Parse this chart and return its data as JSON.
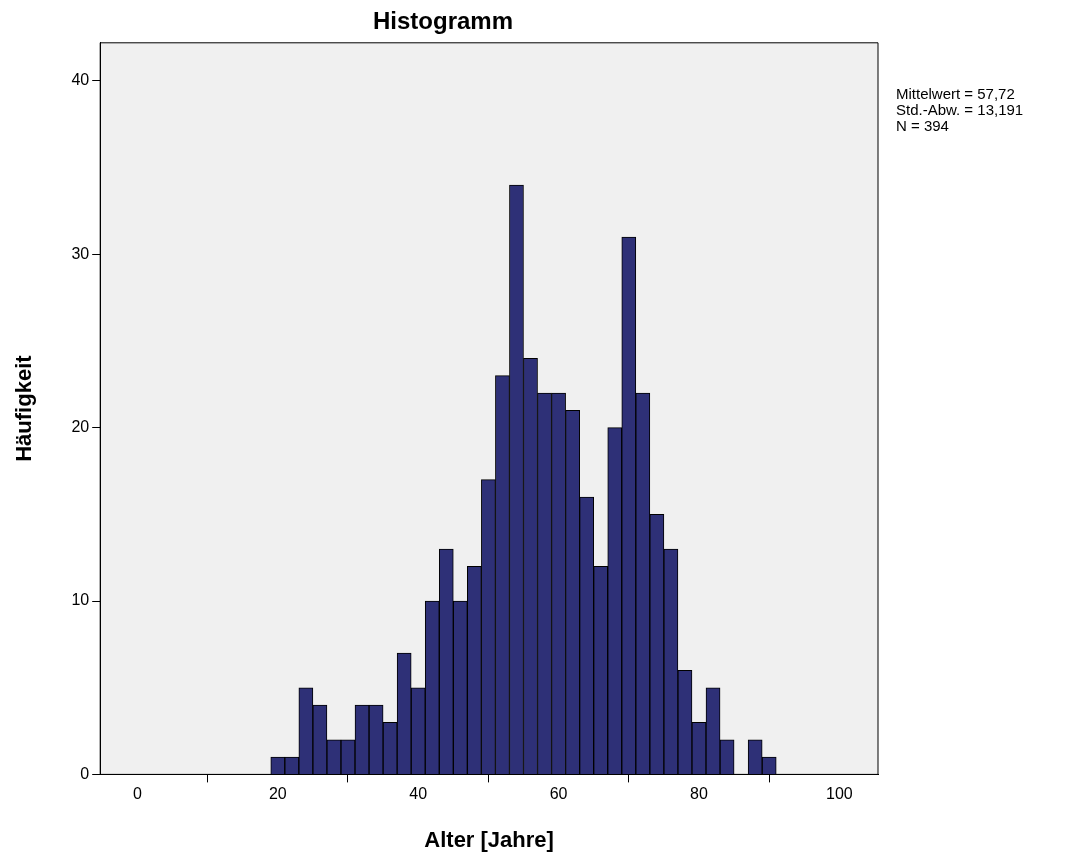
{
  "chart_data": {
    "type": "histogram",
    "title": "Histogramm",
    "xlabel": "Alter [Jahre]",
    "ylabel": "Häufigkeit",
    "bins": [
      19,
      21,
      23,
      25,
      27,
      29,
      31,
      33,
      35,
      37,
      39,
      41,
      43,
      45,
      47,
      49,
      51,
      53,
      55,
      57,
      59,
      61,
      63,
      65,
      67,
      69,
      71,
      73,
      75,
      77,
      79,
      81,
      83,
      85,
      87,
      89,
      91
    ],
    "values": [
      1,
      1,
      5,
      4,
      2,
      2,
      4,
      4,
      3,
      7,
      5,
      10,
      13,
      10,
      12,
      17,
      23,
      34,
      24,
      22,
      22,
      21,
      16,
      12,
      20,
      31,
      22,
      15,
      13,
      6,
      3,
      5,
      2,
      0,
      2,
      1
    ],
    "color": "#2e3077",
    "xlim": [
      -5.3,
      105.5
    ],
    "xticks": [
      0,
      20,
      40,
      60,
      80,
      100
    ],
    "ylim": [
      0,
      42.2
    ],
    "yticks": [
      0,
      10,
      20,
      30,
      40
    ],
    "grid": false,
    "legend": false,
    "annotations": [
      "Mittelwert = 57,72",
      "Std.-Abw. = 13,191",
      "N = 394"
    ]
  }
}
